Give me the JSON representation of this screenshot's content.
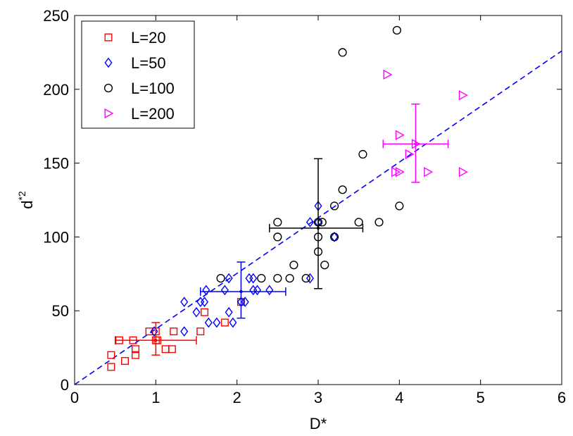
{
  "chart_data": {
    "type": "scatter",
    "xlabel": "D*",
    "ylabel": "d",
    "ylabel_sup": "*2",
    "xlim": [
      0,
      6
    ],
    "ylim": [
      0,
      250
    ],
    "xticks": [
      0,
      1,
      2,
      3,
      4,
      5,
      6
    ],
    "yticks": [
      0,
      50,
      100,
      150,
      200,
      250
    ],
    "xtick_labels": [
      "0",
      "1",
      "2",
      "3",
      "4",
      "5",
      "6"
    ],
    "ytick_labels": [
      "0",
      "50",
      "100",
      "150",
      "200",
      "250"
    ],
    "grid": false,
    "legend_position": "top-left",
    "series": [
      {
        "name": "L=20",
        "marker": "square",
        "color": "#ff0000",
        "points": [
          [
            0.45,
            20
          ],
          [
            0.45,
            12
          ],
          [
            0.55,
            30
          ],
          [
            0.62,
            16
          ],
          [
            0.72,
            30
          ],
          [
            0.75,
            24
          ],
          [
            0.75,
            20
          ],
          [
            0.92,
            36
          ],
          [
            1.0,
            36
          ],
          [
            1.0,
            30
          ],
          [
            1.02,
            30
          ],
          [
            1.12,
            24
          ],
          [
            1.2,
            24
          ],
          [
            1.22,
            36
          ],
          [
            1.55,
            36
          ],
          [
            1.6,
            49
          ],
          [
            1.85,
            42
          ],
          [
            2.05,
            56
          ]
        ],
        "errorbar": {
          "x": 1.0,
          "y": 30,
          "xerr": [
            0.5,
            1.5
          ],
          "yerr": [
            20,
            42
          ]
        }
      },
      {
        "name": "L=50",
        "marker": "diamond",
        "color": "#0000ff",
        "points": [
          [
            0.98,
            36
          ],
          [
            1.35,
            56
          ],
          [
            1.35,
            36
          ],
          [
            1.5,
            49
          ],
          [
            1.55,
            56
          ],
          [
            1.6,
            56
          ],
          [
            1.62,
            64
          ],
          [
            1.65,
            42
          ],
          [
            1.75,
            42
          ],
          [
            1.85,
            64
          ],
          [
            1.9,
            72
          ],
          [
            1.9,
            49
          ],
          [
            1.95,
            42
          ],
          [
            2.05,
            56
          ],
          [
            2.1,
            56
          ],
          [
            2.15,
            72
          ],
          [
            2.2,
            72
          ],
          [
            2.2,
            64
          ],
          [
            2.25,
            64
          ],
          [
            2.4,
            64
          ],
          [
            2.9,
            110
          ],
          [
            2.9,
            72
          ],
          [
            3.0,
            121
          ],
          [
            3.0,
            110
          ],
          [
            3.2,
            100
          ]
        ],
        "errorbar": {
          "x": 2.05,
          "y": 63,
          "xerr": [
            1.55,
            2.6
          ],
          "yerr": [
            45,
            83
          ]
        }
      },
      {
        "name": "L=100",
        "marker": "circle",
        "color": "#000000",
        "points": [
          [
            1.8,
            72
          ],
          [
            2.3,
            72
          ],
          [
            2.5,
            110
          ],
          [
            2.5,
            100
          ],
          [
            2.5,
            72
          ],
          [
            2.65,
            72
          ],
          [
            2.7,
            81
          ],
          [
            2.85,
            72
          ],
          [
            3.0,
            110
          ],
          [
            3.0,
            100
          ],
          [
            3.0,
            90
          ],
          [
            3.05,
            110
          ],
          [
            3.08,
            81
          ],
          [
            3.2,
            121
          ],
          [
            3.2,
            100
          ],
          [
            3.3,
            132
          ],
          [
            3.3,
            225
          ],
          [
            3.5,
            110
          ],
          [
            3.55,
            156
          ],
          [
            3.75,
            110
          ],
          [
            3.97,
            240
          ],
          [
            4.0,
            121
          ]
        ],
        "errorbar": {
          "x": 3.0,
          "y": 106,
          "xerr": [
            2.4,
            3.55
          ],
          "yerr": [
            65,
            153
          ]
        }
      },
      {
        "name": "L=200",
        "marker": "triangle-right",
        "color": "#ff00ff",
        "points": [
          [
            3.85,
            210
          ],
          [
            3.95,
            144
          ],
          [
            4.0,
            169
          ],
          [
            4.0,
            144
          ],
          [
            4.12,
            156
          ],
          [
            4.2,
            163
          ],
          [
            4.35,
            144
          ],
          [
            4.78,
            196
          ],
          [
            4.78,
            144
          ]
        ],
        "errorbar": {
          "x": 4.2,
          "y": 163,
          "xerr": [
            3.8,
            4.6
          ],
          "yerr": [
            137,
            190
          ]
        }
      }
    ],
    "fit_line": {
      "style": "dashed",
      "color": "#0000ff",
      "from": [
        0,
        0
      ],
      "to": [
        6,
        226
      ]
    }
  }
}
